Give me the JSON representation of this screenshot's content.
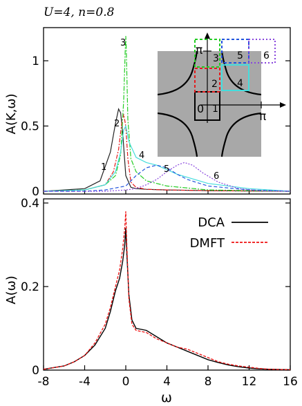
{
  "title": "U=4, n=0.8",
  "colors": {
    "c1": "#222222",
    "c2": "#e41a1c",
    "c3": "#22cc22",
    "c4": "#44dddd",
    "c5": "#2255dd",
    "c6": "#8844dd",
    "dca": "#000000",
    "dmft": "#ee1111",
    "inset_fill": "#a8a8a8"
  },
  "top": {
    "ylabel": "A(K,ω)",
    "yticks": [
      "0",
      "0.5",
      "1"
    ],
    "curve_labels": [
      "1",
      "2",
      "3",
      "4",
      "5",
      "6"
    ],
    "inset": {
      "pi_x": "π",
      "pi_y": "π",
      "origin": "0",
      "cell_labels": [
        "1",
        "2",
        "3",
        "4",
        "5",
        "6"
      ]
    }
  },
  "bottom": {
    "ylabel": "A(ω)",
    "xlabel": "ω",
    "yticks": [
      "0",
      "0.2",
      "0.4"
    ],
    "xticks": [
      "-8",
      "-4",
      "0",
      "4",
      "8",
      "12",
      "16"
    ],
    "legend": [
      "DCA",
      "DMFT"
    ]
  },
  "chart_data": [
    {
      "type": "line",
      "xlim": [
        -8,
        16
      ],
      "ylim": [
        0,
        1.25
      ],
      "series": [
        {
          "name": "1",
          "x": [
            -8,
            -4,
            -2.5,
            -1.5,
            -1,
            -0.7,
            -0.5,
            -0.3,
            0,
            0.5,
            1,
            2,
            4,
            8,
            16
          ],
          "y": [
            0,
            0.02,
            0.08,
            0.3,
            0.52,
            0.63,
            0.6,
            0.45,
            0.12,
            0.03,
            0.02,
            0.015,
            0.01,
            0.005,
            0
          ]
        },
        {
          "name": "2",
          "x": [
            -8,
            -4,
            -2,
            -1.2,
            -0.7,
            -0.4,
            -0.2,
            0,
            0.2,
            0.5,
            1,
            2,
            4,
            8,
            16
          ],
          "y": [
            0,
            0.01,
            0.05,
            0.15,
            0.32,
            0.52,
            0.59,
            0.5,
            0.25,
            0.07,
            0.03,
            0.015,
            0.01,
            0.005,
            0
          ]
        },
        {
          "name": "3",
          "x": [
            -8,
            -4,
            -2,
            -1,
            -0.5,
            -0.2,
            -0.05,
            0,
            0.05,
            0.2,
            0.5,
            1,
            2,
            4,
            8,
            16
          ],
          "y": [
            0,
            0.01,
            0.05,
            0.12,
            0.28,
            0.7,
            1.1,
            1.19,
            1.1,
            0.55,
            0.25,
            0.15,
            0.08,
            0.04,
            0.01,
            0
          ]
        },
        {
          "name": "4",
          "x": [
            -8,
            -4,
            -2,
            -1,
            -0.5,
            -0.2,
            0,
            0.3,
            1,
            2,
            3,
            5,
            8,
            12,
            16
          ],
          "y": [
            0,
            0.01,
            0.05,
            0.15,
            0.3,
            0.47,
            0.5,
            0.38,
            0.26,
            0.22,
            0.2,
            0.13,
            0.06,
            0.02,
            0
          ]
        },
        {
          "name": "5",
          "x": [
            -8,
            -4,
            -2,
            0,
            0.5,
            1,
            2,
            3,
            4,
            5,
            6,
            8,
            12,
            16
          ],
          "y": [
            0,
            0,
            0.01,
            0.04,
            0.08,
            0.12,
            0.18,
            0.2,
            0.18,
            0.13,
            0.09,
            0.04,
            0.01,
            0
          ]
        },
        {
          "name": "6",
          "x": [
            -8,
            -4,
            -2,
            0,
            1,
            2,
            3,
            4,
            5,
            5.7,
            6.5,
            7.5,
            9,
            11,
            13,
            16
          ],
          "y": [
            0,
            0,
            0,
            0.01,
            0.02,
            0.05,
            0.09,
            0.15,
            0.2,
            0.22,
            0.2,
            0.14,
            0.07,
            0.02,
            0.005,
            0
          ]
        }
      ]
    },
    {
      "type": "line",
      "xlabel": "ω",
      "ylabel": "A(ω)",
      "xlim": [
        -8,
        16
      ],
      "ylim": [
        0,
        0.4
      ],
      "series": [
        {
          "name": "DCA",
          "x": [
            -8,
            -6,
            -5,
            -4,
            -3,
            -2,
            -1.5,
            -1,
            -0.6,
            -0.3,
            -0.1,
            0,
            0.1,
            0.3,
            0.6,
            1,
            2,
            3,
            4,
            5,
            6,
            7,
            8,
            9,
            10,
            11,
            12,
            13,
            14,
            16
          ],
          "y": [
            0.002,
            0.01,
            0.02,
            0.035,
            0.06,
            0.1,
            0.14,
            0.19,
            0.22,
            0.26,
            0.3,
            0.34,
            0.28,
            0.18,
            0.12,
            0.1,
            0.095,
            0.08,
            0.065,
            0.055,
            0.045,
            0.035,
            0.025,
            0.018,
            0.012,
            0.008,
            0.005,
            0.003,
            0.002,
            0.001
          ]
        },
        {
          "name": "DMFT",
          "x": [
            -8,
            -6,
            -5,
            -4,
            -3,
            -2,
            -1.5,
            -1,
            -0.6,
            -0.3,
            -0.1,
            0,
            0.1,
            0.3,
            0.6,
            1,
            2,
            3,
            4,
            5,
            6,
            7,
            8,
            9,
            10,
            11,
            12,
            13,
            14,
            16
          ],
          "y": [
            0.002,
            0.01,
            0.02,
            0.035,
            0.065,
            0.11,
            0.15,
            0.2,
            0.24,
            0.29,
            0.34,
            0.38,
            0.3,
            0.17,
            0.11,
            0.095,
            0.09,
            0.075,
            0.065,
            0.055,
            0.05,
            0.04,
            0.03,
            0.02,
            0.014,
            0.01,
            0.007,
            0.004,
            0.002,
            0.001
          ]
        }
      ]
    }
  ]
}
